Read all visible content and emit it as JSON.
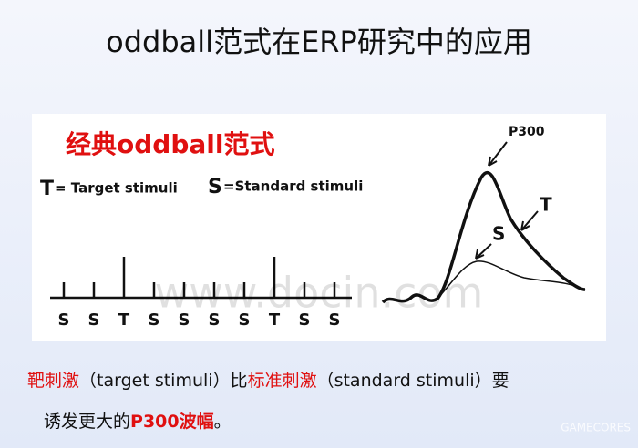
{
  "title": "oddball范式在ERP研究中的应用",
  "panel": {
    "heading": "经典oddball范式",
    "legend": [
      {
        "symbol": "T",
        "text": "= Target stimuli"
      },
      {
        "symbol": "S",
        "text": "=Standard stimuli"
      }
    ],
    "sequence": [
      "S",
      "S",
      "T",
      "S",
      "S",
      "S",
      "S",
      "T",
      "S",
      "S"
    ],
    "waveform_labels": {
      "peak": "P300",
      "target": "T",
      "standard": "S"
    }
  },
  "caption": {
    "line1": [
      "靶刺激",
      "（target stimuli）比",
      "标准刺激",
      "（standard stimuli）要"
    ],
    "line2": [
      "诱发更大的",
      "P300波幅",
      "。"
    ]
  },
  "watermarks": [
    "www.docin.com",
    "GAMECORES"
  ]
}
